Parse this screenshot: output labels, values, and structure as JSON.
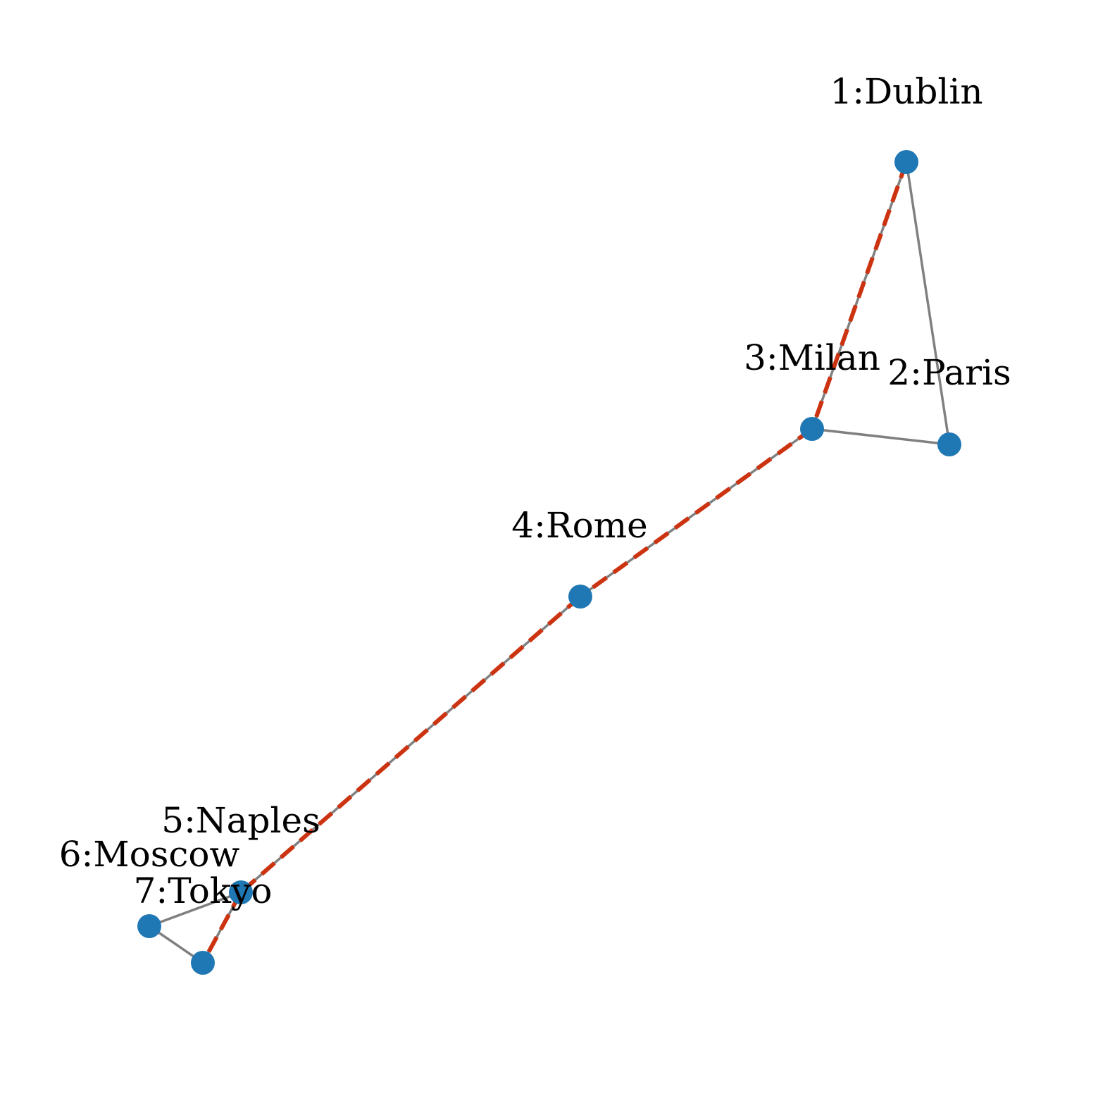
{
  "graph": {
    "nodes": [
      {
        "id": "1",
        "label": "1:Dublin"
      },
      {
        "id": "2",
        "label": "2:Paris"
      },
      {
        "id": "3",
        "label": "3:Milan"
      },
      {
        "id": "4",
        "label": "4:Rome"
      },
      {
        "id": "5",
        "label": "5:Naples"
      },
      {
        "id": "6",
        "label": "6:Moscow"
      },
      {
        "id": "7",
        "label": "7:Tokyo"
      }
    ],
    "edges": [
      {
        "source": "1",
        "target": "2"
      },
      {
        "source": "1",
        "target": "3"
      },
      {
        "source": "2",
        "target": "3"
      },
      {
        "source": "3",
        "target": "4"
      },
      {
        "source": "4",
        "target": "5"
      },
      {
        "source": "5",
        "target": "6"
      },
      {
        "source": "5",
        "target": "7"
      },
      {
        "source": "6",
        "target": "7"
      }
    ],
    "highlighted_path": [
      "1",
      "3",
      "4",
      "5",
      "7"
    ],
    "colors": {
      "node": "#1f77b4",
      "edge": "#808080",
      "path": "#cc3311",
      "label": "#000000"
    }
  }
}
